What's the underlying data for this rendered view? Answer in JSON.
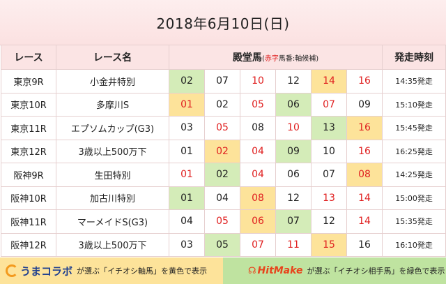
{
  "title": "2018年6月10日(日)",
  "headers": {
    "race": "レース",
    "race_name": "レース名",
    "horses": "殿堂馬",
    "horses_note_open": "(",
    "horses_note_red": "赤字",
    "horses_note_rest": "馬番:軸候補)",
    "start_time": "発走時刻"
  },
  "colors": {
    "red": "#e02020",
    "yellow": "#fde39a",
    "green": "#d4ecb8",
    "header": "#fbe4e4"
  },
  "races": [
    {
      "race": "東京9R",
      "name": "小金井特別",
      "time": "14:35発走",
      "horses": [
        {
          "n": "02",
          "c": "green"
        },
        {
          "n": "07"
        },
        {
          "n": "10",
          "red": true
        },
        {
          "n": "12"
        },
        {
          "n": "14",
          "red": true,
          "c": "yellow"
        },
        {
          "n": "16",
          "red": true
        }
      ]
    },
    {
      "race": "東京10R",
      "name": "多摩川S",
      "time": "15:10発走",
      "horses": [
        {
          "n": "01",
          "red": true,
          "c": "yellow"
        },
        {
          "n": "02"
        },
        {
          "n": "05",
          "red": true
        },
        {
          "n": "06",
          "c": "green"
        },
        {
          "n": "07",
          "red": true
        },
        {
          "n": "09"
        }
      ]
    },
    {
      "race": "東京11R",
      "name": "エプソムカップ(G3)",
      "time": "15:45発走",
      "horses": [
        {
          "n": "03"
        },
        {
          "n": "05",
          "red": true
        },
        {
          "n": "08"
        },
        {
          "n": "10",
          "red": true
        },
        {
          "n": "13",
          "c": "green"
        },
        {
          "n": "16",
          "red": true,
          "c": "yellow"
        }
      ]
    },
    {
      "race": "東京12R",
      "name": "3歳以上500万下",
      "time": "16:25発走",
      "horses": [
        {
          "n": "01"
        },
        {
          "n": "02",
          "red": true,
          "c": "yellow"
        },
        {
          "n": "04",
          "red": true
        },
        {
          "n": "09",
          "c": "green"
        },
        {
          "n": "10"
        },
        {
          "n": "16",
          "red": true
        }
      ]
    },
    {
      "race": "阪神9R",
      "name": "生田特別",
      "time": "14:25発走",
      "horses": [
        {
          "n": "01",
          "red": true
        },
        {
          "n": "02",
          "c": "green"
        },
        {
          "n": "04",
          "red": true
        },
        {
          "n": "06"
        },
        {
          "n": "07"
        },
        {
          "n": "08",
          "red": true,
          "c": "yellow"
        }
      ]
    },
    {
      "race": "阪神10R",
      "name": "加古川特別",
      "time": "15:00発走",
      "horses": [
        {
          "n": "01",
          "c": "green"
        },
        {
          "n": "04"
        },
        {
          "n": "08",
          "red": true,
          "c": "yellow"
        },
        {
          "n": "12"
        },
        {
          "n": "13",
          "red": true
        },
        {
          "n": "14",
          "red": true
        }
      ]
    },
    {
      "race": "阪神11R",
      "name": "マーメイドS(G3)",
      "time": "15:35発走",
      "horses": [
        {
          "n": "04"
        },
        {
          "n": "05",
          "red": true
        },
        {
          "n": "06",
          "red": true,
          "c": "yellow"
        },
        {
          "n": "07",
          "c": "green"
        },
        {
          "n": "12"
        },
        {
          "n": "14",
          "red": true
        }
      ]
    },
    {
      "race": "阪神12R",
      "name": "3歳以上500万下",
      "time": "16:10発走",
      "horses": [
        {
          "n": "03"
        },
        {
          "n": "05",
          "c": "green"
        },
        {
          "n": "07",
          "red": true
        },
        {
          "n": "11",
          "red": true
        },
        {
          "n": "15",
          "red": true,
          "c": "yellow"
        },
        {
          "n": "16"
        }
      ]
    }
  ],
  "footer": {
    "left_logo": "うまコラボ",
    "left_logo_icon": "c-logo-icon",
    "left_text": "が選ぶ「イチオシ軸馬」を黄色で表示",
    "right_logo": "HitMake",
    "right_logo_icon": "hitmake-mark-icon",
    "right_text": "が選ぶ「イチオシ相手馬」を緑色で表示"
  }
}
